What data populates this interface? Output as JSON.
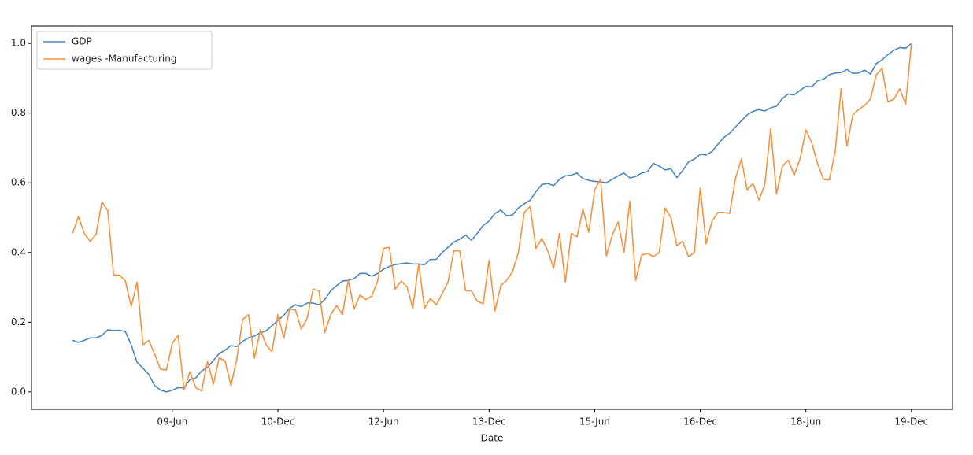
{
  "chart_data": {
    "type": "line",
    "x_label": "Date",
    "x": [
      "2008-01",
      "2008-02",
      "2008-03",
      "2008-04",
      "2008-05",
      "2008-06",
      "2008-07",
      "2008-08",
      "2008-09",
      "2008-10",
      "2008-11",
      "2008-12",
      "2009-01",
      "2009-02",
      "2009-03",
      "2009-04",
      "2009-05",
      "2009-06",
      "2009-07",
      "2009-08",
      "2009-09",
      "2009-10",
      "2009-11",
      "2009-12",
      "2010-01",
      "2010-02",
      "2010-03",
      "2010-04",
      "2010-05",
      "2010-06",
      "2010-07",
      "2010-08",
      "2010-09",
      "2010-10",
      "2010-11",
      "2010-12",
      "2011-01",
      "2011-02",
      "2011-03",
      "2011-04",
      "2011-05",
      "2011-06",
      "2011-07",
      "2011-08",
      "2011-09",
      "2011-10",
      "2011-11",
      "2011-12",
      "2012-01",
      "2012-02",
      "2012-03",
      "2012-04",
      "2012-05",
      "2012-06",
      "2012-07",
      "2012-08",
      "2012-09",
      "2012-10",
      "2012-11",
      "2012-12",
      "2013-01",
      "2013-02",
      "2013-03",
      "2013-04",
      "2013-05",
      "2013-06",
      "2013-07",
      "2013-08",
      "2013-09",
      "2013-10",
      "2013-11",
      "2013-12",
      "2014-01",
      "2014-02",
      "2014-03",
      "2014-04",
      "2014-05",
      "2014-06",
      "2014-07",
      "2014-08",
      "2014-09",
      "2014-10",
      "2014-11",
      "2014-12",
      "2015-01",
      "2015-02",
      "2015-03",
      "2015-04",
      "2015-05",
      "2015-06",
      "2015-07",
      "2015-08",
      "2015-09",
      "2015-10",
      "2015-11",
      "2015-12",
      "2016-01",
      "2016-02",
      "2016-03",
      "2016-04",
      "2016-05",
      "2016-06",
      "2016-07",
      "2016-08",
      "2016-09",
      "2016-10",
      "2016-11",
      "2016-12",
      "2017-01",
      "2017-02",
      "2017-03",
      "2017-04",
      "2017-05",
      "2017-06",
      "2017-07",
      "2017-08",
      "2017-09",
      "2017-10",
      "2017-11",
      "2017-12",
      "2018-01",
      "2018-02",
      "2018-03",
      "2018-04",
      "2018-05",
      "2018-06",
      "2018-07",
      "2018-08",
      "2018-09",
      "2018-10",
      "2018-11",
      "2018-12",
      "2019-01",
      "2019-02",
      "2019-03",
      "2019-04",
      "2019-05",
      "2019-06",
      "2019-07",
      "2019-08",
      "2019-09",
      "2019-10",
      "2019-11",
      "2019-12"
    ],
    "series": [
      {
        "name": "GDP",
        "color": "#4a86c0",
        "values": [
          0.148,
          0.142,
          0.148,
          0.155,
          0.155,
          0.162,
          0.178,
          0.176,
          0.177,
          0.173,
          0.135,
          0.085,
          0.068,
          0.05,
          0.018,
          0.005,
          0,
          0.005,
          0.012,
          0.012,
          0.035,
          0.04,
          0.06,
          0.07,
          0.09,
          0.11,
          0.12,
          0.133,
          0.13,
          0.145,
          0.155,
          0.16,
          0.17,
          0.175,
          0.19,
          0.205,
          0.22,
          0.24,
          0.25,
          0.245,
          0.255,
          0.255,
          0.25,
          0.265,
          0.29,
          0.305,
          0.318,
          0.32,
          0.325,
          0.34,
          0.34,
          0.332,
          0.34,
          0.352,
          0.36,
          0.365,
          0.368,
          0.37,
          0.367,
          0.367,
          0.365,
          0.38,
          0.38,
          0.4,
          0.415,
          0.43,
          0.438,
          0.45,
          0.435,
          0.455,
          0.478,
          0.49,
          0.512,
          0.522,
          0.505,
          0.508,
          0.528,
          0.54,
          0.55,
          0.575,
          0.595,
          0.598,
          0.592,
          0.61,
          0.62,
          0.622,
          0.628,
          0.612,
          0.607,
          0.604,
          0.603,
          0.6,
          0.61,
          0.62,
          0.628,
          0.614,
          0.618,
          0.628,
          0.632,
          0.656,
          0.648,
          0.637,
          0.64,
          0.615,
          0.635,
          0.66,
          0.668,
          0.682,
          0.68,
          0.69,
          0.71,
          0.73,
          0.742,
          0.76,
          0.778,
          0.795,
          0.805,
          0.81,
          0.806,
          0.815,
          0.82,
          0.842,
          0.855,
          0.852,
          0.865,
          0.877,
          0.875,
          0.893,
          0.897,
          0.91,
          0.915,
          0.916,
          0.925,
          0.914,
          0.915,
          0.923,
          0.912,
          0.942,
          0.953,
          0.968,
          0.98,
          0.988,
          0.986,
          1.0
        ]
      },
      {
        "name": "wages -Manufacturing",
        "color": "#f5923e",
        "values": [
          0.455,
          0.503,
          0.455,
          0.432,
          0.452,
          0.545,
          0.52,
          0.335,
          0.335,
          0.318,
          0.245,
          0.315,
          0.135,
          0.148,
          0.108,
          0.065,
          0.063,
          0.14,
          0.162,
          0.005,
          0.058,
          0.012,
          0.003,
          0.088,
          0.022,
          0.098,
          0.088,
          0.018,
          0.095,
          0.208,
          0.222,
          0.097,
          0.178,
          0.135,
          0.115,
          0.222,
          0.155,
          0.238,
          0.235,
          0.18,
          0.212,
          0.295,
          0.29,
          0.17,
          0.222,
          0.248,
          0.222,
          0.32,
          0.238,
          0.278,
          0.265,
          0.275,
          0.318,
          0.412,
          0.415,
          0.295,
          0.318,
          0.302,
          0.24,
          0.368,
          0.24,
          0.268,
          0.25,
          0.282,
          0.315,
          0.405,
          0.405,
          0.29,
          0.29,
          0.26,
          0.253,
          0.377,
          0.232,
          0.305,
          0.32,
          0.345,
          0.4,
          0.515,
          0.532,
          0.412,
          0.44,
          0.405,
          0.355,
          0.455,
          0.315,
          0.455,
          0.445,
          0.525,
          0.458,
          0.58,
          0.61,
          0.39,
          0.45,
          0.488,
          0.4,
          0.548,
          0.32,
          0.392,
          0.398,
          0.388,
          0.4,
          0.528,
          0.5,
          0.42,
          0.432,
          0.388,
          0.4,
          0.585,
          0.425,
          0.49,
          0.515,
          0.515,
          0.512,
          0.612,
          0.668,
          0.58,
          0.598,
          0.55,
          0.595,
          0.755,
          0.568,
          0.648,
          0.665,
          0.622,
          0.668,
          0.752,
          0.715,
          0.655,
          0.61,
          0.608,
          0.69,
          0.87,
          0.705,
          0.795,
          0.81,
          0.822,
          0.84,
          0.91,
          0.928,
          0.832,
          0.84,
          0.87,
          0.825,
          1.0
        ]
      }
    ],
    "xlim": [
      "2007-06",
      "2020-07"
    ],
    "xticks": [
      {
        "value": "2009-06",
        "label": "09-Jun"
      },
      {
        "value": "2010-12",
        "label": "10-Dec"
      },
      {
        "value": "2012-06",
        "label": "12-Jun"
      },
      {
        "value": "2013-12",
        "label": "13-Dec"
      },
      {
        "value": "2015-06",
        "label": "15-Jun"
      },
      {
        "value": "2016-12",
        "label": "16-Dec"
      },
      {
        "value": "2018-06",
        "label": "18-Jun"
      },
      {
        "value": "2019-12",
        "label": "19-Dec"
      }
    ],
    "ylim": [
      -0.05,
      1.05
    ],
    "yticks": [
      {
        "value": 0,
        "label": "0.0"
      },
      0.2,
      0.4,
      0.6,
      0.8,
      {
        "value": 1,
        "label": "1.0"
      }
    ],
    "legend": "upper left"
  }
}
